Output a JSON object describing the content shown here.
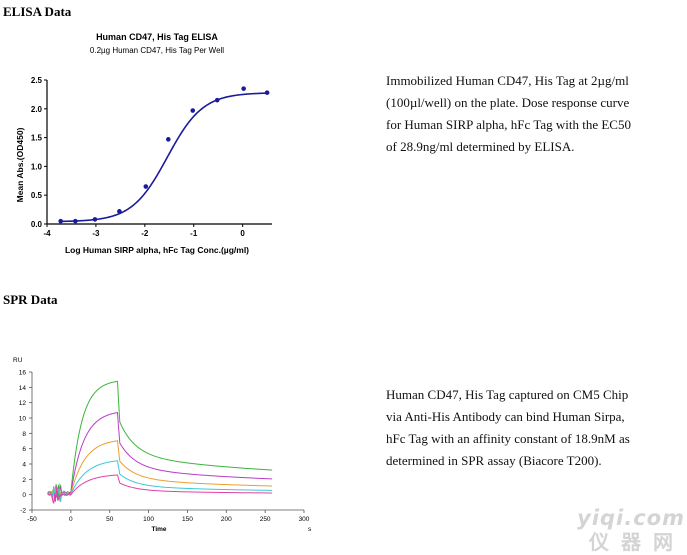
{
  "elisa": {
    "heading": "ELISA Data",
    "description_lines": [
      "Immobilized Human CD47, His Tag at 2µg/ml",
      "(100µl/well) on the plate. Dose response curve",
      "for Human SIRP alpha, hFc Tag with the EC50",
      "of 28.9ng/ml determined by ELISA."
    ],
    "colors": {
      "curve": "#1a1a9c",
      "points": "#1a1a9c"
    }
  },
  "spr": {
    "heading": "SPR Data",
    "description_lines": [
      "Human CD47, His Tag captured on CM5 Chip",
      "via Anti-His Antibody can bind Human Sirpa,",
      "hFc Tag with an affinity constant of 18.9nM as",
      "determined in SPR assay (Biacore T200)."
    ]
  },
  "watermark": {
    "line1": "yiqi.com",
    "line2": "仪器网"
  },
  "chart_data": [
    {
      "type": "scatter",
      "title": "Human CD47, His Tag ELISA",
      "subtitle": "0.2µg Human CD47, His Tag Per Well",
      "xlabel": "Log Human SIRP alpha, hFc Tag Conc.(µg/ml)",
      "ylabel": "Mean Abs.(OD450)",
      "xlim": [
        -4,
        0.6
      ],
      "ylim": [
        0,
        2.5
      ],
      "x_ticks": [
        -4,
        -3,
        -2,
        -1,
        0
      ],
      "y_ticks": [
        "0.0",
        "0.5",
        "1.0",
        "1.5",
        "2.0",
        "2.5"
      ],
      "points": {
        "x": [
          -3.72,
          -3.42,
          -3.02,
          -2.52,
          -1.98,
          -1.52,
          -1.02,
          -0.52,
          0.02,
          0.5
        ],
        "y": [
          0.05,
          0.05,
          0.08,
          0.22,
          0.65,
          1.47,
          1.97,
          2.15,
          2.35,
          2.28
        ]
      },
      "fit": {
        "model": "4PL",
        "bottom": 0.04,
        "top": 2.28,
        "logEC50": -1.54,
        "hill": 1.2
      }
    },
    {
      "type": "line",
      "title": "",
      "xlabel": "Time",
      "ylabel": "RU",
      "x_unit": "s",
      "xlim": [
        -50,
        300
      ],
      "ylim": [
        -2,
        16
      ],
      "x_ticks": [
        -50,
        0,
        50,
        100,
        150,
        200,
        250,
        300
      ],
      "y_ticks": [
        -2,
        0,
        2,
        4,
        6,
        8,
        10,
        12,
        14,
        16
      ],
      "association_end": 60,
      "series": [
        {
          "color": "#3cb43c",
          "baseline": 0.3,
          "rise": 14.7,
          "ka": 0.07,
          "final": 2.0,
          "fast_frac": 0.6,
          "fast_k": 0.05,
          "slow_k": 0.005
        },
        {
          "color": "#b83cc8",
          "baseline": 0.2,
          "rise": 10.8,
          "ka": 0.06,
          "final": 1.2,
          "fast_frac": 0.62,
          "fast_k": 0.05,
          "slow_k": 0.005
        },
        {
          "color": "#e8a030",
          "baseline": 0.1,
          "rise": 7.2,
          "ka": 0.055,
          "final": 0.7,
          "fast_frac": 0.65,
          "fast_k": 0.05,
          "slow_k": 0.006
        },
        {
          "color": "#3cc8d8",
          "baseline": 0.05,
          "rise": 4.6,
          "ka": 0.05,
          "final": 0.3,
          "fast_frac": 0.68,
          "fast_k": 0.05,
          "slow_k": 0.006
        },
        {
          "color": "#e040a8",
          "baseline": 0.0,
          "rise": 2.7,
          "ka": 0.05,
          "final": 0.1,
          "fast_frac": 0.7,
          "fast_k": 0.05,
          "slow_k": 0.007
        }
      ]
    }
  ]
}
